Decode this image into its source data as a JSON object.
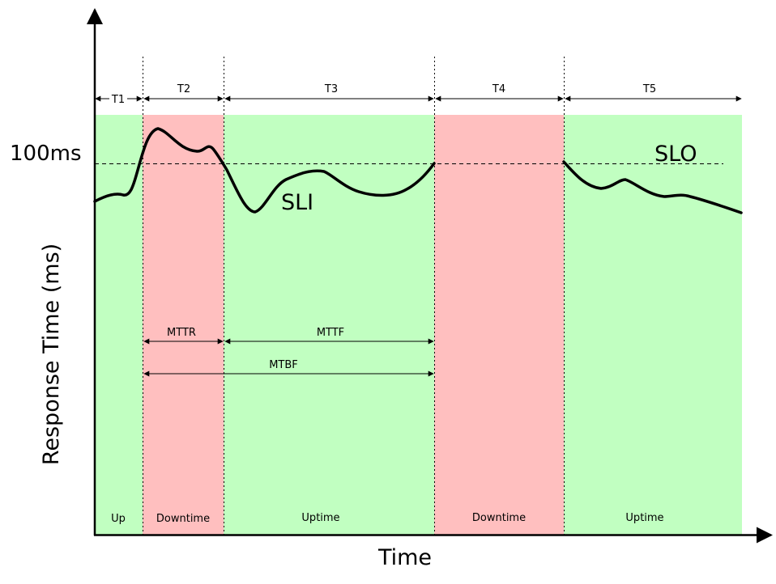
{
  "axes": {
    "x_title": "Time",
    "y_title": "Response Time (ms)"
  },
  "threshold": {
    "value_label": "100ms",
    "name": "SLO"
  },
  "curve_label": "SLI",
  "colors": {
    "uptime": "#c1ffc1",
    "downtime": "#ffbfbf",
    "line": "#000000"
  },
  "periods": [
    {
      "name": "T1",
      "state_label": "Up",
      "state": "up"
    },
    {
      "name": "T2",
      "state_label": "Downtime",
      "state": "down"
    },
    {
      "name": "T3",
      "state_label": "Uptime",
      "state": "up"
    },
    {
      "name": "T4",
      "state_label": "Downtime",
      "state": "down"
    },
    {
      "name": "T5",
      "state_label": "Uptime",
      "state": "up"
    }
  ],
  "metrics": {
    "mttr": "MTTR",
    "mttf": "MTTF",
    "mtbf": "MTBF"
  }
}
